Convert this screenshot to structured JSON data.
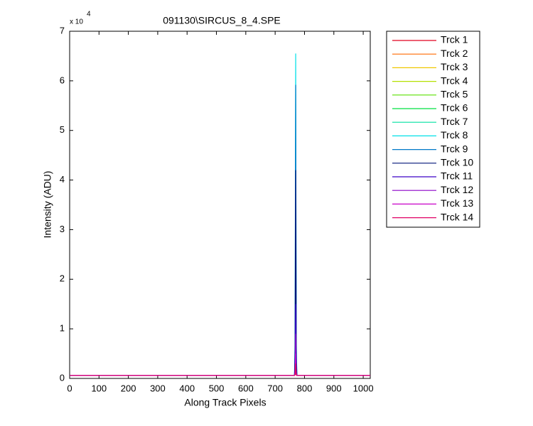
{
  "chart_data": {
    "type": "line",
    "title": "091130\\SIRCUS_8_4.SPE",
    "x_label": "Along Track Pixels",
    "y_label": "Intensity (ADU)",
    "y_multiplier": "x 10",
    "y_multiplier_exponent": "4",
    "x": [
      1,
      766,
      768,
      769,
      770,
      771,
      772,
      774,
      1024
    ],
    "xlim": [
      0,
      1024
    ],
    "xticks": [
      0,
      100,
      200,
      300,
      400,
      500,
      600,
      700,
      800,
      900,
      1000
    ],
    "ylim": [
      0,
      7
    ],
    "yticks": [
      0,
      1,
      2,
      3,
      4,
      5,
      6,
      7
    ],
    "legend": "outside-right",
    "series": [
      {
        "name": "Trck 1",
        "color": "#e0001f",
        "values": [
          0.06,
          0.06,
          0.08,
          0.2,
          0.3,
          0.15,
          0.07,
          0.06,
          0.06
        ]
      },
      {
        "name": "Trck 2",
        "color": "#ff6a00",
        "values": [
          0.06,
          0.06,
          0.09,
          0.25,
          0.4,
          0.2,
          0.08,
          0.06,
          0.06
        ]
      },
      {
        "name": "Trck 3",
        "color": "#f0c800",
        "values": [
          0.06,
          0.06,
          0.1,
          0.3,
          0.5,
          0.25,
          0.09,
          0.06,
          0.06
        ]
      },
      {
        "name": "Trck 4",
        "color": "#b4e000",
        "values": [
          0.06,
          0.06,
          0.1,
          0.35,
          0.6,
          0.3,
          0.1,
          0.06,
          0.06
        ]
      },
      {
        "name": "Trck 5",
        "color": "#5ae000",
        "values": [
          0.06,
          0.06,
          0.12,
          0.5,
          0.8,
          0.4,
          0.11,
          0.06,
          0.06
        ]
      },
      {
        "name": "Trck 6",
        "color": "#00e040",
        "values": [
          0.06,
          0.06,
          0.15,
          0.7,
          1.2,
          0.6,
          0.13,
          0.06,
          0.06
        ]
      },
      {
        "name": "Trck 7",
        "color": "#00e0a0",
        "values": [
          0.06,
          0.06,
          0.3,
          1.6,
          2.8,
          1.4,
          0.25,
          0.06,
          0.06
        ]
      },
      {
        "name": "Trck 8",
        "color": "#00e0e8",
        "values": [
          0.06,
          0.06,
          0.8,
          4.2,
          6.55,
          3.3,
          0.7,
          0.06,
          0.06
        ]
      },
      {
        "name": "Trck 9",
        "color": "#0078c8",
        "values": [
          0.06,
          0.06,
          0.7,
          3.6,
          5.92,
          3.0,
          0.6,
          0.06,
          0.06
        ]
      },
      {
        "name": "Trck 10",
        "color": "#001478",
        "values": [
          0.06,
          0.06,
          0.5,
          2.5,
          4.2,
          2.1,
          0.4,
          0.06,
          0.06
        ]
      },
      {
        "name": "Trck 11",
        "color": "#3c00c8",
        "values": [
          0.06,
          0.06,
          0.2,
          0.9,
          1.5,
          0.75,
          0.18,
          0.06,
          0.06
        ]
      },
      {
        "name": "Trck 12",
        "color": "#8c00c8",
        "values": [
          0.06,
          0.06,
          0.13,
          0.55,
          0.9,
          0.45,
          0.12,
          0.06,
          0.06
        ]
      },
      {
        "name": "Trck 13",
        "color": "#c800c8",
        "values": [
          0.06,
          0.06,
          0.1,
          0.3,
          0.5,
          0.25,
          0.09,
          0.06,
          0.06
        ]
      },
      {
        "name": "Trck 14",
        "color": "#e00064",
        "values": [
          0.06,
          0.06,
          0.08,
          0.2,
          0.3,
          0.15,
          0.07,
          0.06,
          0.06
        ]
      }
    ]
  }
}
